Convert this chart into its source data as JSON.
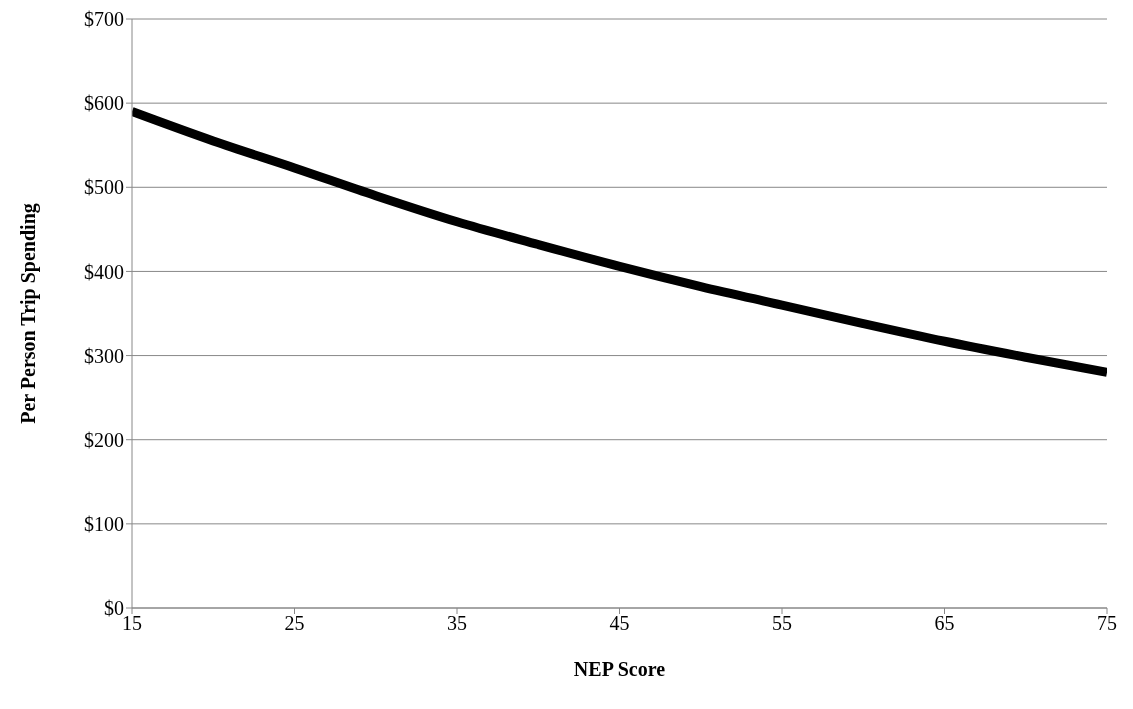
{
  "chart_data": {
    "type": "line",
    "xlabel": "NEP Score",
    "ylabel": "Per Person Trip Spending",
    "x": [
      15,
      20,
      25,
      30,
      35,
      40,
      45,
      50,
      55,
      60,
      65,
      70,
      75
    ],
    "series": [
      {
        "color": "#000000",
        "values": [
          590,
          555,
          523,
          490,
          459,
          432,
          406,
          382,
          360,
          338,
          317,
          298,
          280
        ]
      }
    ],
    "xlim": [
      15,
      75
    ],
    "xticks": [
      15,
      25,
      35,
      45,
      55,
      65,
      75
    ],
    "ylim": [
      0,
      700
    ],
    "yticks": [
      {
        "value": 0,
        "label": "$0"
      },
      {
        "value": 100,
        "label": "$100"
      },
      {
        "value": 200,
        "label": "$200"
      },
      {
        "value": 300,
        "label": "$300"
      },
      {
        "value": 400,
        "label": "$400"
      },
      {
        "value": 500,
        "label": "$500"
      },
      {
        "value": 600,
        "label": "$600"
      },
      {
        "value": 700,
        "label": "$700"
      }
    ],
    "grid": "y",
    "marker": "none",
    "line_style": "solid"
  }
}
